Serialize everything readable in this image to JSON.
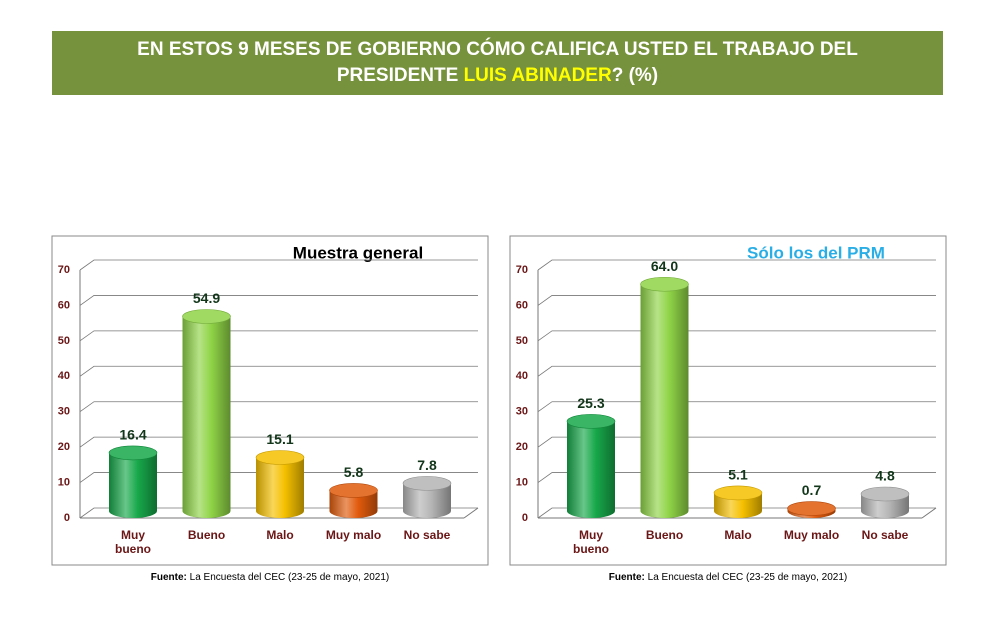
{
  "header": {
    "title": [
      "EN ESTOS 9 MESES DE GOBIERNO CÓMO CALIFICA USTED EL TRABAJO DEL PRESIDENTE ",
      "LUIS ABINADER",
      "? (%)"
    ]
  },
  "chart_data": [
    {
      "type": "bar",
      "title": "Muestra general",
      "title_color": "#000000",
      "categories": [
        "Muy bueno",
        "Bueno",
        "Malo",
        "Muy malo",
        "No sabe"
      ],
      "values": [
        16.4,
        54.9,
        15.1,
        5.8,
        7.8
      ],
      "value_labels": [
        "16.4",
        "54.9",
        "15.1",
        "5.8",
        "7.8"
      ],
      "colors": [
        "#17a84a",
        "#8fd447",
        "#f5c000",
        "#e05a0c",
        "#b4b4b4"
      ],
      "ylim": [
        0,
        70
      ],
      "yticks": [
        0,
        10,
        20,
        30,
        40,
        50,
        60,
        70
      ],
      "grid": true,
      "source_label": "Fuente:",
      "source": " La Encuesta del CEC (23-25 de mayo, 2021)"
    },
    {
      "type": "bar",
      "title": "Sólo los del PRM",
      "title_color": "#2aaee6",
      "categories": [
        "Muy bueno",
        "Bueno",
        "Malo",
        "Muy malo",
        "No sabe"
      ],
      "values": [
        25.3,
        64.0,
        5.1,
        0.7,
        4.8
      ],
      "value_labels": [
        "25.3",
        "64.0",
        "5.1",
        "0.7",
        "4.8"
      ],
      "colors": [
        "#17a84a",
        "#8fd447",
        "#f5c000",
        "#e05a0c",
        "#b4b4b4"
      ],
      "ylim": [
        0,
        70
      ],
      "yticks": [
        0,
        10,
        20,
        30,
        40,
        50,
        60,
        70
      ],
      "grid": true,
      "source_label": "Fuente:",
      "source": " La Encuesta del CEC (23-25 de mayo, 2021)"
    }
  ]
}
